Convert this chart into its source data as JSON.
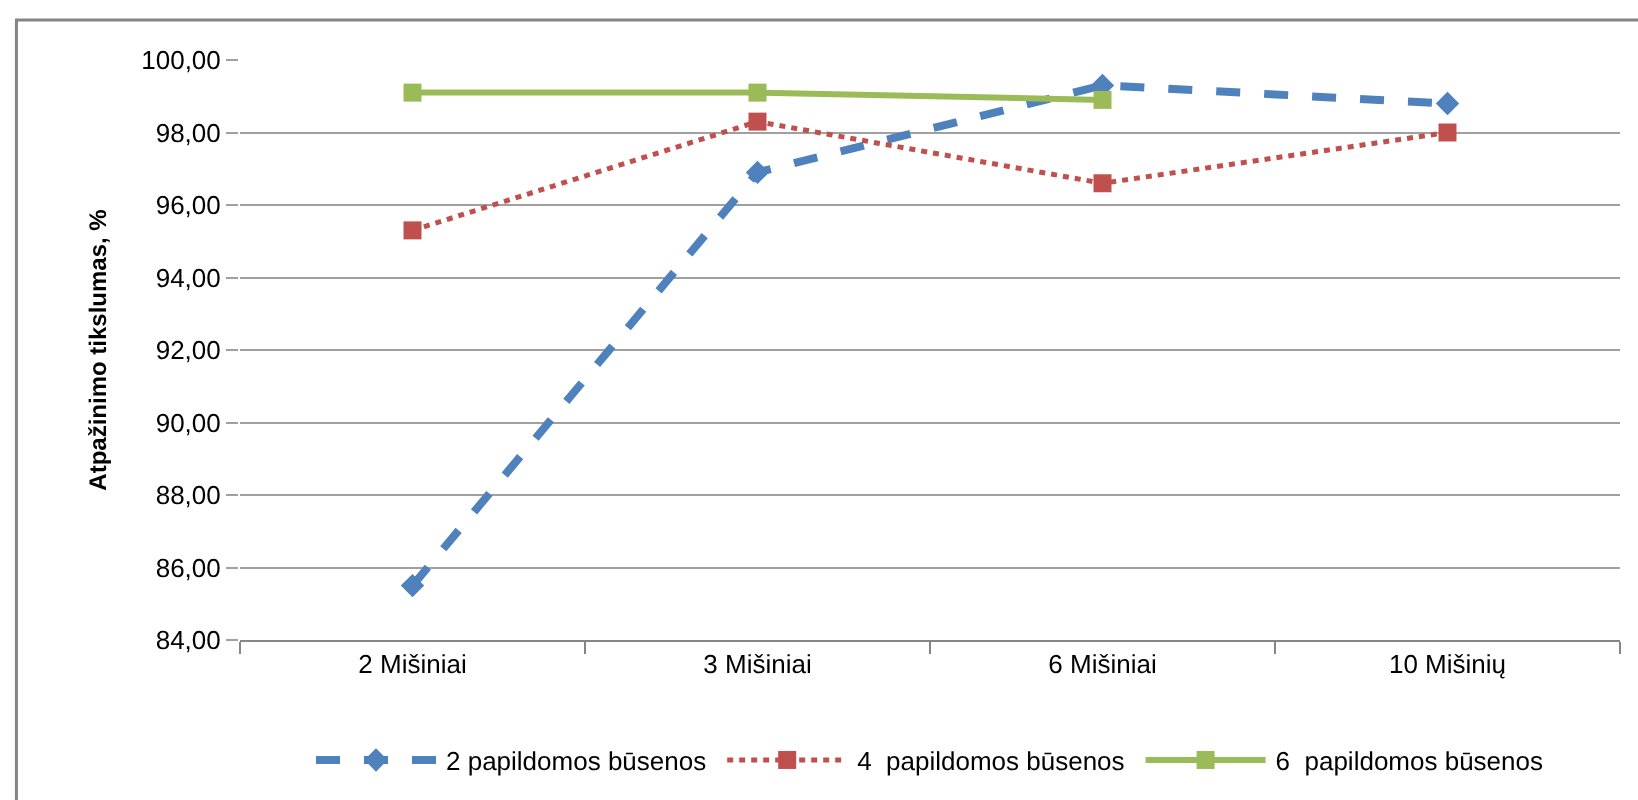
{
  "chart_data": {
    "type": "line",
    "ylabel": "Atpažinimo tikslumas, %",
    "categories": [
      "2 Mišiniai",
      "3 Mišiniai",
      "6 Mišiniai",
      "10 Mišinių"
    ],
    "series": [
      {
        "name": "2 papildomos būsenos",
        "color": "#4f81bd",
        "values": [
          85.5,
          96.9,
          99.3,
          98.8
        ],
        "marker": "diamond",
        "line_style": "dashed"
      },
      {
        "name": "4  papildomos būsenos",
        "color": "#c0504d",
        "values": [
          95.3,
          98.3,
          96.6,
          98.0
        ],
        "marker": "square",
        "line_style": "dotted"
      },
      {
        "name": "6  papildomos būsenos",
        "color": "#9bbb59",
        "values": [
          99.1,
          99.1,
          98.9,
          null
        ],
        "marker": "square",
        "line_style": "solid"
      }
    ],
    "ylim": [
      84,
      100
    ],
    "yticks": [
      {
        "value": 84,
        "label": "84,00"
      },
      {
        "value": 86,
        "label": "86,00"
      },
      {
        "value": 88,
        "label": "88,00"
      },
      {
        "value": 90,
        "label": "90,00"
      },
      {
        "value": 92,
        "label": "92,00"
      },
      {
        "value": 94,
        "label": "94,00"
      },
      {
        "value": 96,
        "label": "96,00"
      },
      {
        "value": 98,
        "label": "98,00"
      },
      {
        "value": 100,
        "label": "100,00"
      }
    ],
    "grid": "y",
    "legend": "bottom"
  }
}
